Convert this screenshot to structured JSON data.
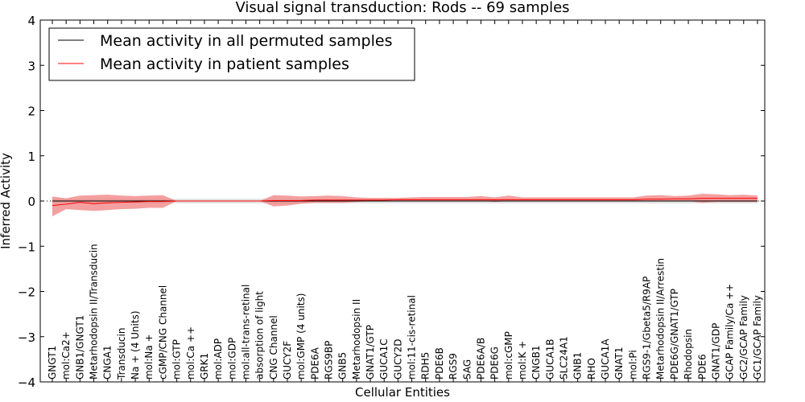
{
  "chart_data": {
    "type": "line",
    "title": "Visual signal transduction: Rods -- 69 samples",
    "xlabel": "Cellular Entities",
    "ylabel": "Inferred Activity",
    "ylim": [
      -4,
      4
    ],
    "yticks": [
      -4,
      -3,
      -2,
      -1,
      0,
      1,
      2,
      3,
      4
    ],
    "ytick_labels": [
      "−4",
      "−3",
      "−2",
      "−1",
      "0",
      "1",
      "2",
      "3",
      "4"
    ],
    "grid": false,
    "legend_position": "top-left",
    "categories": [
      "GNGT1",
      "mol:Ca2+",
      "GNB1/GNGT1",
      "Metarhodopsin II/Transducin",
      "CNGA1",
      "Transducin",
      "Na + (4 Units)",
      "mol:Na +",
      "cGMP/CNG Channel",
      "mol:GTP",
      "mol:Ca ++",
      "GRK1",
      "mol:ADP",
      "mol:GDP",
      "mol:all-trans-retinal",
      "absorption of light",
      "CNG Channel",
      "GUCY2F",
      "mol:GMP (4 units)",
      "PDE6A",
      "RGS9BP",
      "GNB5",
      "Metarhodopsin II",
      "GNAT1/GTP",
      "GUCA1C",
      "GUCY2D",
      "mol:11-cis-retinal",
      "RDH5",
      "PDE6B",
      "RGS9",
      "SAG",
      "PDE6A/B",
      "PDE6G",
      "mol:cGMP",
      "mol:K +",
      "CNGB1",
      "GUCA1B",
      "SLC24A1",
      "GNB1",
      "RHO",
      "GUCA1A",
      "GNAT1",
      "mol:Pi",
      "RGS9-1/Gbeta5/R9AP",
      "Metarhodopsin II/Arrestin",
      "PDE6G/GNAT1/GTP",
      "Rhodopsin",
      "PDE6",
      "GNAT1/GDP",
      "GCAP Family/Ca ++",
      "GC2/GCAP Family",
      "GC1/GCAP Family"
    ],
    "series": [
      {
        "name": "Mean activity in all permuted samples",
        "color": "#000000",
        "values": [
          0,
          0,
          0,
          0,
          0,
          0,
          0,
          0,
          0,
          0,
          0,
          0,
          0,
          0,
          0,
          0,
          0,
          0,
          0,
          0,
          0,
          0,
          0,
          0,
          0,
          0,
          0,
          0,
          0,
          0,
          0,
          0,
          0,
          0,
          0,
          0,
          0,
          0,
          0,
          0,
          0,
          0,
          0,
          0,
          0,
          0,
          0,
          0,
          0,
          0,
          0,
          0
        ],
        "band_lower": [
          -0.05,
          -0.05,
          -0.05,
          -0.05,
          -0.05,
          -0.05,
          -0.05,
          -0.05,
          -0.05,
          -0.05,
          -0.05,
          -0.05,
          -0.05,
          -0.05,
          -0.05,
          -0.05,
          -0.05,
          -0.05,
          -0.05,
          -0.05,
          -0.05,
          -0.05,
          -0.05,
          -0.05,
          -0.05,
          -0.05,
          -0.05,
          -0.05,
          -0.05,
          -0.05,
          -0.05,
          -0.05,
          -0.05,
          -0.05,
          -0.05,
          -0.05,
          -0.05,
          -0.05,
          -0.05,
          -0.05,
          -0.05,
          -0.05,
          -0.05,
          -0.05,
          -0.05,
          -0.05,
          -0.05,
          -0.05,
          -0.05,
          -0.05,
          -0.05,
          -0.05
        ],
        "band_upper": [
          0.05,
          0.05,
          0.05,
          0.05,
          0.05,
          0.05,
          0.05,
          0.05,
          0.05,
          0.05,
          0.05,
          0.05,
          0.05,
          0.05,
          0.05,
          0.05,
          0.05,
          0.05,
          0.05,
          0.05,
          0.05,
          0.05,
          0.05,
          0.05,
          0.05,
          0.05,
          0.05,
          0.05,
          0.05,
          0.05,
          0.05,
          0.05,
          0.05,
          0.05,
          0.05,
          0.05,
          0.05,
          0.05,
          0.05,
          0.05,
          0.05,
          0.05,
          0.05,
          0.05,
          0.05,
          0.05,
          0.05,
          0.05,
          0.05,
          0.05,
          0.05,
          0.05
        ],
        "band_color": "#bbbbbb"
      },
      {
        "name": "Mean activity in patient samples",
        "color": "#ff0000",
        "values": [
          -0.1,
          -0.07,
          -0.03,
          -0.06,
          -0.04,
          -0.03,
          -0.02,
          -0.01,
          -0.01,
          0,
          0,
          0,
          0,
          0,
          0,
          0,
          0.01,
          0.01,
          0.01,
          0.02,
          0.02,
          0.02,
          0.02,
          0.02,
          0.02,
          0.03,
          0.03,
          0.03,
          0.03,
          0.03,
          0.03,
          0.03,
          0.03,
          0.03,
          0.03,
          0.03,
          0.03,
          0.03,
          0.03,
          0.03,
          0.03,
          0.03,
          0.03,
          0.04,
          0.04,
          0.05,
          0.05,
          0.06,
          0.06,
          0.06,
          0.06,
          0.06
        ],
        "band_lower": [
          -0.34,
          -0.18,
          -0.2,
          -0.22,
          -0.2,
          -0.18,
          -0.17,
          -0.15,
          -0.15,
          0,
          0,
          0,
          0,
          0,
          0,
          0,
          -0.12,
          -0.1,
          -0.06,
          -0.04,
          -0.04,
          -0.04,
          -0.02,
          0,
          0,
          0,
          0,
          0,
          0,
          0,
          0,
          0,
          -0.02,
          0,
          0,
          0,
          0,
          0,
          0,
          0,
          0,
          0,
          0,
          0,
          0,
          0,
          0,
          -0.04,
          -0.02,
          -0.02,
          -0.02,
          -0.02
        ],
        "band_upper": [
          0.1,
          0.06,
          0.12,
          0.13,
          0.14,
          0.12,
          0.11,
          0.12,
          0.13,
          0,
          0,
          0,
          0,
          0,
          0,
          0,
          0.13,
          0.12,
          0.1,
          0.11,
          0.12,
          0.11,
          0.08,
          0.07,
          0.07,
          0.07,
          0.08,
          0.09,
          0.09,
          0.09,
          0.09,
          0.11,
          0.08,
          0.12,
          0.08,
          0.08,
          0.08,
          0.08,
          0.08,
          0.08,
          0.08,
          0.08,
          0.08,
          0.12,
          0.13,
          0.11,
          0.12,
          0.16,
          0.15,
          0.13,
          0.14,
          0.12
        ],
        "band_color": "#f08080"
      }
    ]
  }
}
